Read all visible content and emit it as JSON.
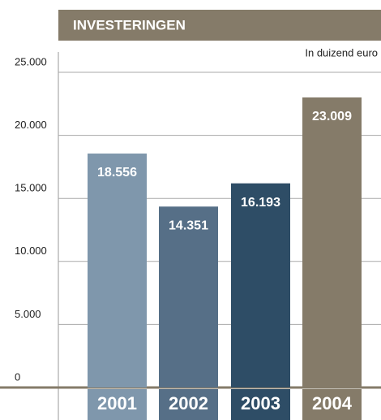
{
  "chart_data": {
    "type": "bar",
    "title": "INVESTERINGEN",
    "subtitle": "In duizend euro",
    "categories": [
      "2001",
      "2002",
      "2003",
      "2004"
    ],
    "values": [
      18556,
      14351,
      16193,
      23009
    ],
    "value_labels": [
      "18.556",
      "14.351",
      "16.193",
      "23.009"
    ],
    "colors": [
      "#7f97ac",
      "#566f87",
      "#2e4d66",
      "#857b69"
    ],
    "ylim": [
      0,
      25000
    ],
    "yticks": [
      {
        "value": 0,
        "label": "0"
      },
      {
        "value": 5000,
        "label": "5.000"
      },
      {
        "value": 10000,
        "label": "10.000"
      },
      {
        "value": 15000,
        "label": "15.000"
      },
      {
        "value": 20000,
        "label": "20.000"
      },
      {
        "value": 25000,
        "label": "25.000"
      }
    ],
    "grid": true
  }
}
